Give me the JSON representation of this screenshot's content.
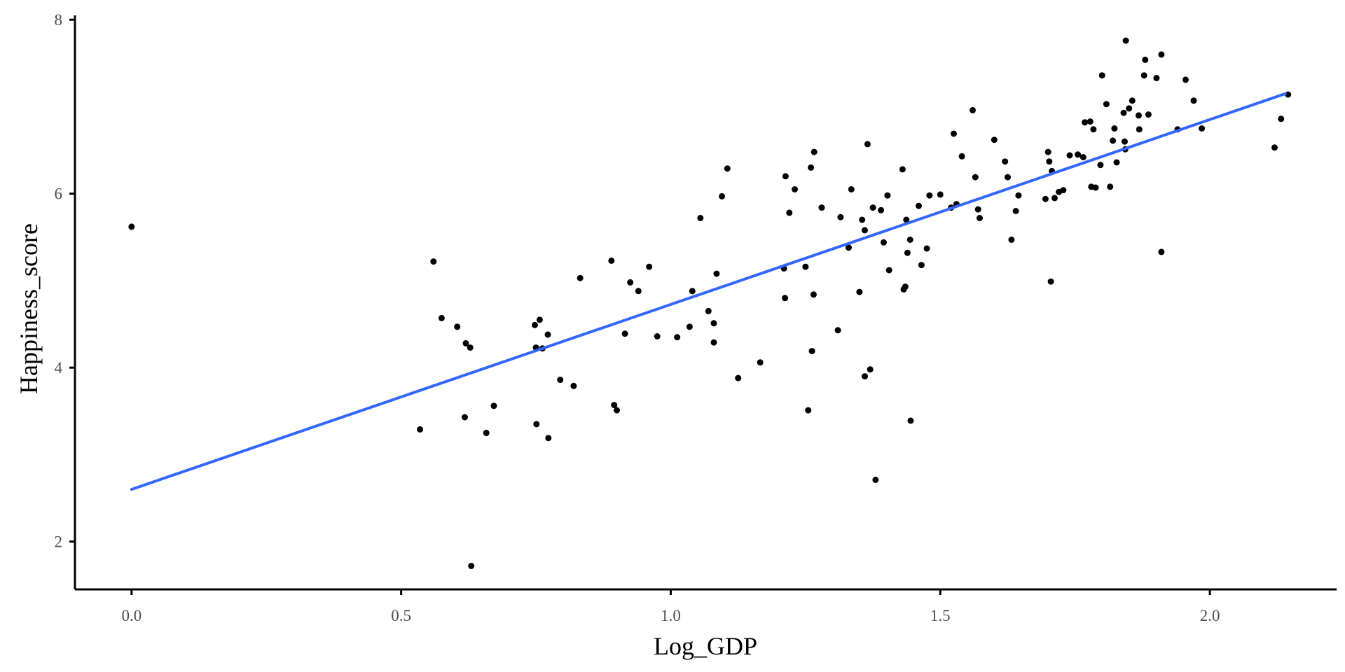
{
  "chart_data": {
    "type": "scatter",
    "title": "",
    "xlabel": "Log_GDP",
    "ylabel": "Happiness_score",
    "xlim": [
      -0.105,
      2.235
    ],
    "ylim": [
      1.45,
      8.05
    ],
    "x_ticks": [
      0.0,
      0.5,
      1.0,
      1.5,
      2.0
    ],
    "x_tick_labels": [
      "0.0",
      "0.5",
      "1.0",
      "1.5",
      "2.0"
    ],
    "y_ticks": [
      2,
      4,
      6,
      8
    ],
    "y_tick_labels": [
      "2",
      "4",
      "6",
      "8"
    ],
    "grid": false,
    "legend": "none",
    "point_color": "#000000",
    "fit_line": {
      "color": "#3366FF",
      "x": [
        0.0,
        2.14
      ],
      "y": [
        2.6,
        7.15
      ]
    },
    "points": [
      [
        0.0,
        5.62
      ],
      [
        0.535,
        3.29
      ],
      [
        0.56,
        5.22
      ],
      [
        0.575,
        4.57
      ],
      [
        0.604,
        4.47
      ],
      [
        0.618,
        3.43
      ],
      [
        0.62,
        4.28
      ],
      [
        0.628,
        4.23
      ],
      [
        0.63,
        1.72
      ],
      [
        0.658,
        3.25
      ],
      [
        0.672,
        3.56
      ],
      [
        0.748,
        4.49
      ],
      [
        0.75,
        4.23
      ],
      [
        0.751,
        3.35
      ],
      [
        0.757,
        4.55
      ],
      [
        0.762,
        4.22
      ],
      [
        0.772,
        4.38
      ],
      [
        0.773,
        3.19
      ],
      [
        0.795,
        3.86
      ],
      [
        0.82,
        3.79
      ],
      [
        0.832,
        5.03
      ],
      [
        0.89,
        5.23
      ],
      [
        0.895,
        3.57
      ],
      [
        0.9,
        3.51
      ],
      [
        0.915,
        4.39
      ],
      [
        0.925,
        4.98
      ],
      [
        0.94,
        4.88
      ],
      [
        0.96,
        5.16
      ],
      [
        0.975,
        4.36
      ],
      [
        1.012,
        4.35
      ],
      [
        1.035,
        4.47
      ],
      [
        1.04,
        4.88
      ],
      [
        1.055,
        5.72
      ],
      [
        1.07,
        4.65
      ],
      [
        1.08,
        4.29
      ],
      [
        1.08,
        4.51
      ],
      [
        1.085,
        5.08
      ],
      [
        1.095,
        5.97
      ],
      [
        1.105,
        6.29
      ],
      [
        1.125,
        3.88
      ],
      [
        1.166,
        4.06
      ],
      [
        1.21,
        5.14
      ],
      [
        1.212,
        4.8
      ],
      [
        1.213,
        6.2
      ],
      [
        1.22,
        5.78
      ],
      [
        1.23,
        6.05
      ],
      [
        1.25,
        5.16
      ],
      [
        1.255,
        3.51
      ],
      [
        1.26,
        6.3
      ],
      [
        1.262,
        4.19
      ],
      [
        1.265,
        4.84
      ],
      [
        1.266,
        6.48
      ],
      [
        1.28,
        5.84
      ],
      [
        1.31,
        4.43
      ],
      [
        1.315,
        5.73
      ],
      [
        1.33,
        5.38
      ],
      [
        1.335,
        6.05
      ],
      [
        1.35,
        4.87
      ],
      [
        1.355,
        5.7
      ],
      [
        1.36,
        3.9
      ],
      [
        1.36,
        5.58
      ],
      [
        1.365,
        6.57
      ],
      [
        1.37,
        3.98
      ],
      [
        1.375,
        5.84
      ],
      [
        1.38,
        2.71
      ],
      [
        1.39,
        5.81
      ],
      [
        1.395,
        5.44
      ],
      [
        1.402,
        5.98
      ],
      [
        1.405,
        5.12
      ],
      [
        1.43,
        6.28
      ],
      [
        1.432,
        4.9
      ],
      [
        1.435,
        4.93
      ],
      [
        1.437,
        5.7
      ],
      [
        1.439,
        5.32
      ],
      [
        1.444,
        5.47
      ],
      [
        1.445,
        3.39
      ],
      [
        1.46,
        5.86
      ],
      [
        1.465,
        5.18
      ],
      [
        1.475,
        5.37
      ],
      [
        1.48,
        5.98
      ],
      [
        1.5,
        5.99
      ],
      [
        1.52,
        5.84
      ],
      [
        1.525,
        6.69
      ],
      [
        1.53,
        5.88
      ],
      [
        1.54,
        6.43
      ],
      [
        1.56,
        6.96
      ],
      [
        1.565,
        6.19
      ],
      [
        1.57,
        5.82
      ],
      [
        1.573,
        5.72
      ],
      [
        1.6,
        6.62
      ],
      [
        1.62,
        6.37
      ],
      [
        1.625,
        6.19
      ],
      [
        1.632,
        5.47
      ],
      [
        1.64,
        5.8
      ],
      [
        1.645,
        5.98
      ],
      [
        1.695,
        5.94
      ],
      [
        1.7,
        6.48
      ],
      [
        1.702,
        6.37
      ],
      [
        1.705,
        4.99
      ],
      [
        1.707,
        6.26
      ],
      [
        1.712,
        5.95
      ],
      [
        1.72,
        6.02
      ],
      [
        1.728,
        6.04
      ],
      [
        1.74,
        6.44
      ],
      [
        1.755,
        6.45
      ],
      [
        1.765,
        6.42
      ],
      [
        1.768,
        6.82
      ],
      [
        1.778,
        6.83
      ],
      [
        1.78,
        6.08
      ],
      [
        1.784,
        6.74
      ],
      [
        1.788,
        6.07
      ],
      [
        1.797,
        6.33
      ],
      [
        1.8,
        7.36
      ],
      [
        1.808,
        7.03
      ],
      [
        1.815,
        6.08
      ],
      [
        1.82,
        6.61
      ],
      [
        1.823,
        6.75
      ],
      [
        1.827,
        6.36
      ],
      [
        1.84,
        6.93
      ],
      [
        1.842,
        6.6
      ],
      [
        1.843,
        6.51
      ],
      [
        1.844,
        7.76
      ],
      [
        1.85,
        6.98
      ],
      [
        1.856,
        7.07
      ],
      [
        1.868,
        6.9
      ],
      [
        1.869,
        6.74
      ],
      [
        1.878,
        7.36
      ],
      [
        1.88,
        7.54
      ],
      [
        1.886,
        6.91
      ],
      [
        1.901,
        7.33
      ],
      [
        1.91,
        7.6
      ],
      [
        1.91,
        5.33
      ],
      [
        1.94,
        6.74
      ],
      [
        1.955,
        7.31
      ],
      [
        1.97,
        7.07
      ],
      [
        1.985,
        6.75
      ],
      [
        2.12,
        6.53
      ],
      [
        2.132,
        6.86
      ],
      [
        2.145,
        7.14
      ]
    ]
  }
}
